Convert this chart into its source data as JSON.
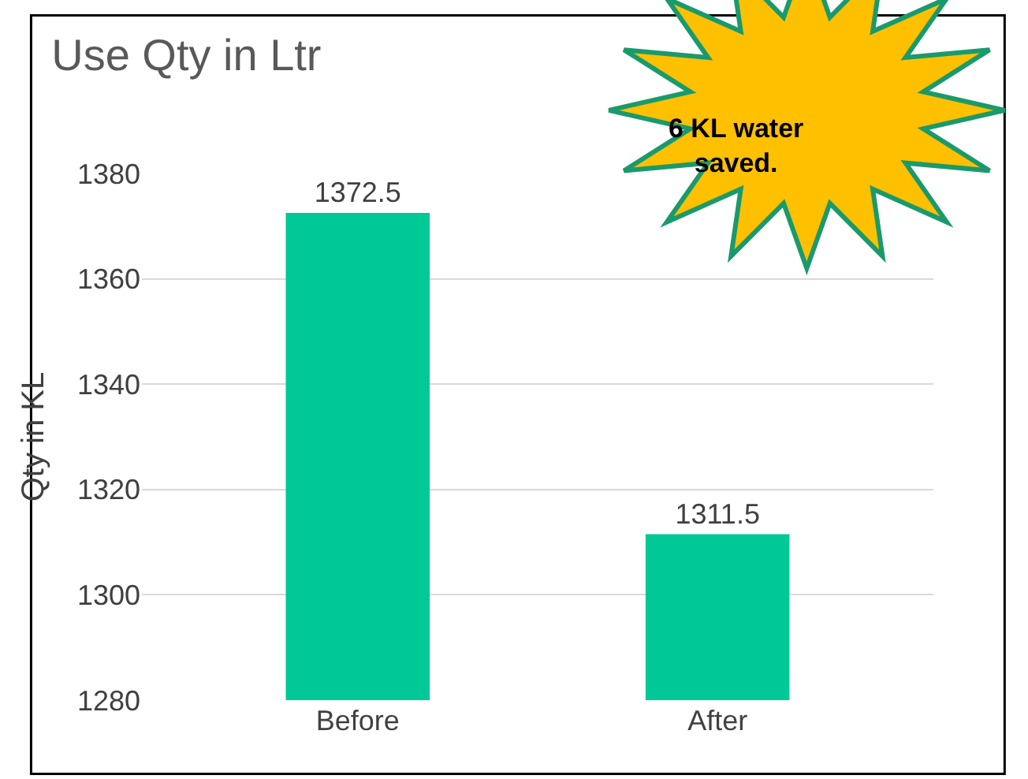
{
  "chart_data": {
    "type": "bar",
    "title": "Use Qty in Ltr",
    "ylabel": "Qty in KL",
    "categories": [
      "Before",
      "After"
    ],
    "values": [
      1372.5,
      1311.5
    ],
    "color": "#00c896",
    "ylim": [
      1280,
      1380
    ],
    "yticks": [
      1280,
      1300,
      1320,
      1340,
      1360,
      1380
    ],
    "grid": "y",
    "legend": false,
    "data_labels": true,
    "annotations": [
      "6 KL water saved."
    ]
  }
}
